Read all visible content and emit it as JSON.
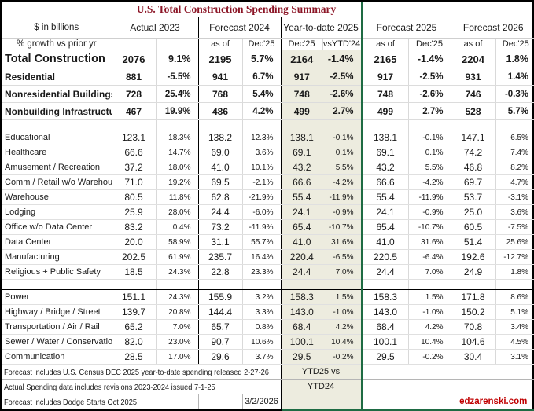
{
  "title": "U.S. Total Construction Spending Summary",
  "colors": {
    "title_text": "#8b1526",
    "accent_green_border": "#1e6b43",
    "ytd_background": "#edecdf",
    "site_link_red": "#c00000"
  },
  "header": {
    "row_label_top": "$ in billions",
    "row_label_bottom": "% growth vs prior yr",
    "groups": [
      {
        "label": "Actual 2023",
        "sub_left": "",
        "sub_right": ""
      },
      {
        "label": "Forecast 2024",
        "sub_left": "as of",
        "sub_right": "Dec'25"
      },
      {
        "label": "Year-to-date 2025",
        "sub_left": "Dec'25",
        "sub_right": "vsYTD'24"
      },
      {
        "label": "Forecast 2025",
        "sub_left": "as of",
        "sub_right": "Dec'25"
      },
      {
        "label": "Forecast 2026",
        "sub_left": "as of",
        "sub_right": "Dec'25"
      }
    ]
  },
  "rows": [
    {
      "type": "total",
      "label": "Total Construction",
      "values": [
        "2076",
        "9.1%",
        "2195",
        "5.7%",
        "2164",
        "-1.4%",
        "2165",
        "-1.4%",
        "2204",
        "1.8%"
      ]
    },
    {
      "type": "summary",
      "label": "Residential",
      "values": [
        "881",
        "-5.5%",
        "941",
        "6.7%",
        "917",
        "-2.5%",
        "917",
        "-2.5%",
        "931",
        "1.4%"
      ]
    },
    {
      "type": "summary",
      "label": "Nonresidential Buildings",
      "values": [
        "728",
        "25.4%",
        "768",
        "5.4%",
        "748",
        "-2.6%",
        "748",
        "-2.6%",
        "746",
        "-0.3%"
      ]
    },
    {
      "type": "summary",
      "label": "Nonbuilding Infrastructure",
      "values": [
        "467",
        "19.9%",
        "486",
        "4.2%",
        "499",
        "2.7%",
        "499",
        "2.7%",
        "528",
        "5.7%"
      ]
    },
    {
      "type": "spacer"
    },
    {
      "type": "detail",
      "label": "Educational",
      "values": [
        "123.1",
        "18.3%",
        "138.2",
        "12.3%",
        "138.1",
        "-0.1%",
        "138.1",
        "-0.1%",
        "147.1",
        "6.5%"
      ]
    },
    {
      "type": "detail",
      "label": "Healthcare",
      "values": [
        "66.6",
        "14.7%",
        "69.0",
        "3.6%",
        "69.1",
        "0.1%",
        "69.1",
        "0.1%",
        "74.2",
        "7.4%"
      ]
    },
    {
      "type": "detail",
      "label": "Amusement / Recreation",
      "values": [
        "37.2",
        "18.0%",
        "41.0",
        "10.1%",
        "43.2",
        "5.5%",
        "43.2",
        "5.5%",
        "46.8",
        "8.2%"
      ]
    },
    {
      "type": "detail",
      "label": "Comm / Retail w/o Warehouse",
      "values": [
        "71.0",
        "19.2%",
        "69.5",
        "-2.1%",
        "66.6",
        "-4.2%",
        "66.6",
        "-4.2%",
        "69.7",
        "4.7%"
      ]
    },
    {
      "type": "detail",
      "label": "Warehouse",
      "values": [
        "80.5",
        "11.8%",
        "62.8",
        "-21.9%",
        "55.4",
        "-11.9%",
        "55.4",
        "-11.9%",
        "53.7",
        "-3.1%"
      ]
    },
    {
      "type": "detail",
      "label": "Lodging",
      "values": [
        "25.9",
        "28.0%",
        "24.4",
        "-6.0%",
        "24.1",
        "-0.9%",
        "24.1",
        "-0.9%",
        "25.0",
        "3.6%"
      ]
    },
    {
      "type": "detail",
      "label": "Office w/o Data Center",
      "values": [
        "83.2",
        "0.4%",
        "73.2",
        "-11.9%",
        "65.4",
        "-10.7%",
        "65.4",
        "-10.7%",
        "60.5",
        "-7.5%"
      ]
    },
    {
      "type": "detail",
      "label": "Data Center",
      "values": [
        "20.0",
        "58.9%",
        "31.1",
        "55.7%",
        "41.0",
        "31.6%",
        "41.0",
        "31.6%",
        "51.4",
        "25.6%"
      ]
    },
    {
      "type": "detail",
      "label": "Manufacturing",
      "values": [
        "202.5",
        "61.9%",
        "235.7",
        "16.4%",
        "220.4",
        "-6.5%",
        "220.5",
        "-6.4%",
        "192.6",
        "-12.7%"
      ]
    },
    {
      "type": "detail",
      "label": "Religious + Public Safety",
      "values": [
        "18.5",
        "24.3%",
        "22.8",
        "23.3%",
        "24.4",
        "7.0%",
        "24.4",
        "7.0%",
        "24.9",
        "1.8%"
      ]
    },
    {
      "type": "spacer"
    },
    {
      "type": "detail",
      "label": "Power",
      "values": [
        "151.1",
        "24.3%",
        "155.9",
        "3.2%",
        "158.3",
        "1.5%",
        "158.3",
        "1.5%",
        "171.8",
        "8.6%"
      ]
    },
    {
      "type": "detail",
      "label": "Highway / Bridge / Street",
      "values": [
        "139.7",
        "20.8%",
        "144.4",
        "3.3%",
        "143.0",
        "-1.0%",
        "143.0",
        "-1.0%",
        "150.2",
        "5.1%"
      ]
    },
    {
      "type": "detail",
      "label": "Transportation / Air / Rail",
      "values": [
        "65.2",
        "7.0%",
        "65.7",
        "0.8%",
        "68.4",
        "4.2%",
        "68.4",
        "4.2%",
        "70.8",
        "3.4%"
      ]
    },
    {
      "type": "detail",
      "label": "Sewer / Water / Conservation",
      "values": [
        "82.0",
        "23.0%",
        "90.7",
        "10.6%",
        "100.1",
        "10.4%",
        "100.1",
        "10.4%",
        "104.6",
        "4.5%"
      ]
    },
    {
      "type": "detail",
      "label": "Communication",
      "values": [
        "28.5",
        "17.0%",
        "29.6",
        "3.7%",
        "29.5",
        "-0.2%",
        "29.5",
        "-0.2%",
        "30.4",
        "3.1%"
      ]
    }
  ],
  "footer": {
    "notes": [
      "Forecast includes U.S. Census DEC 2025 year-to-date spending released 2-27-26",
      "Actual Spending data includes revisions 2023-2024 issued 7-1-25",
      "Forecast includes Dodge Starts Oct 2025"
    ],
    "ytd_label_line1": "YTD25 vs",
    "ytd_label_line2": "YTD24",
    "date": "3/2/2026",
    "site": "edzarenski.com"
  }
}
